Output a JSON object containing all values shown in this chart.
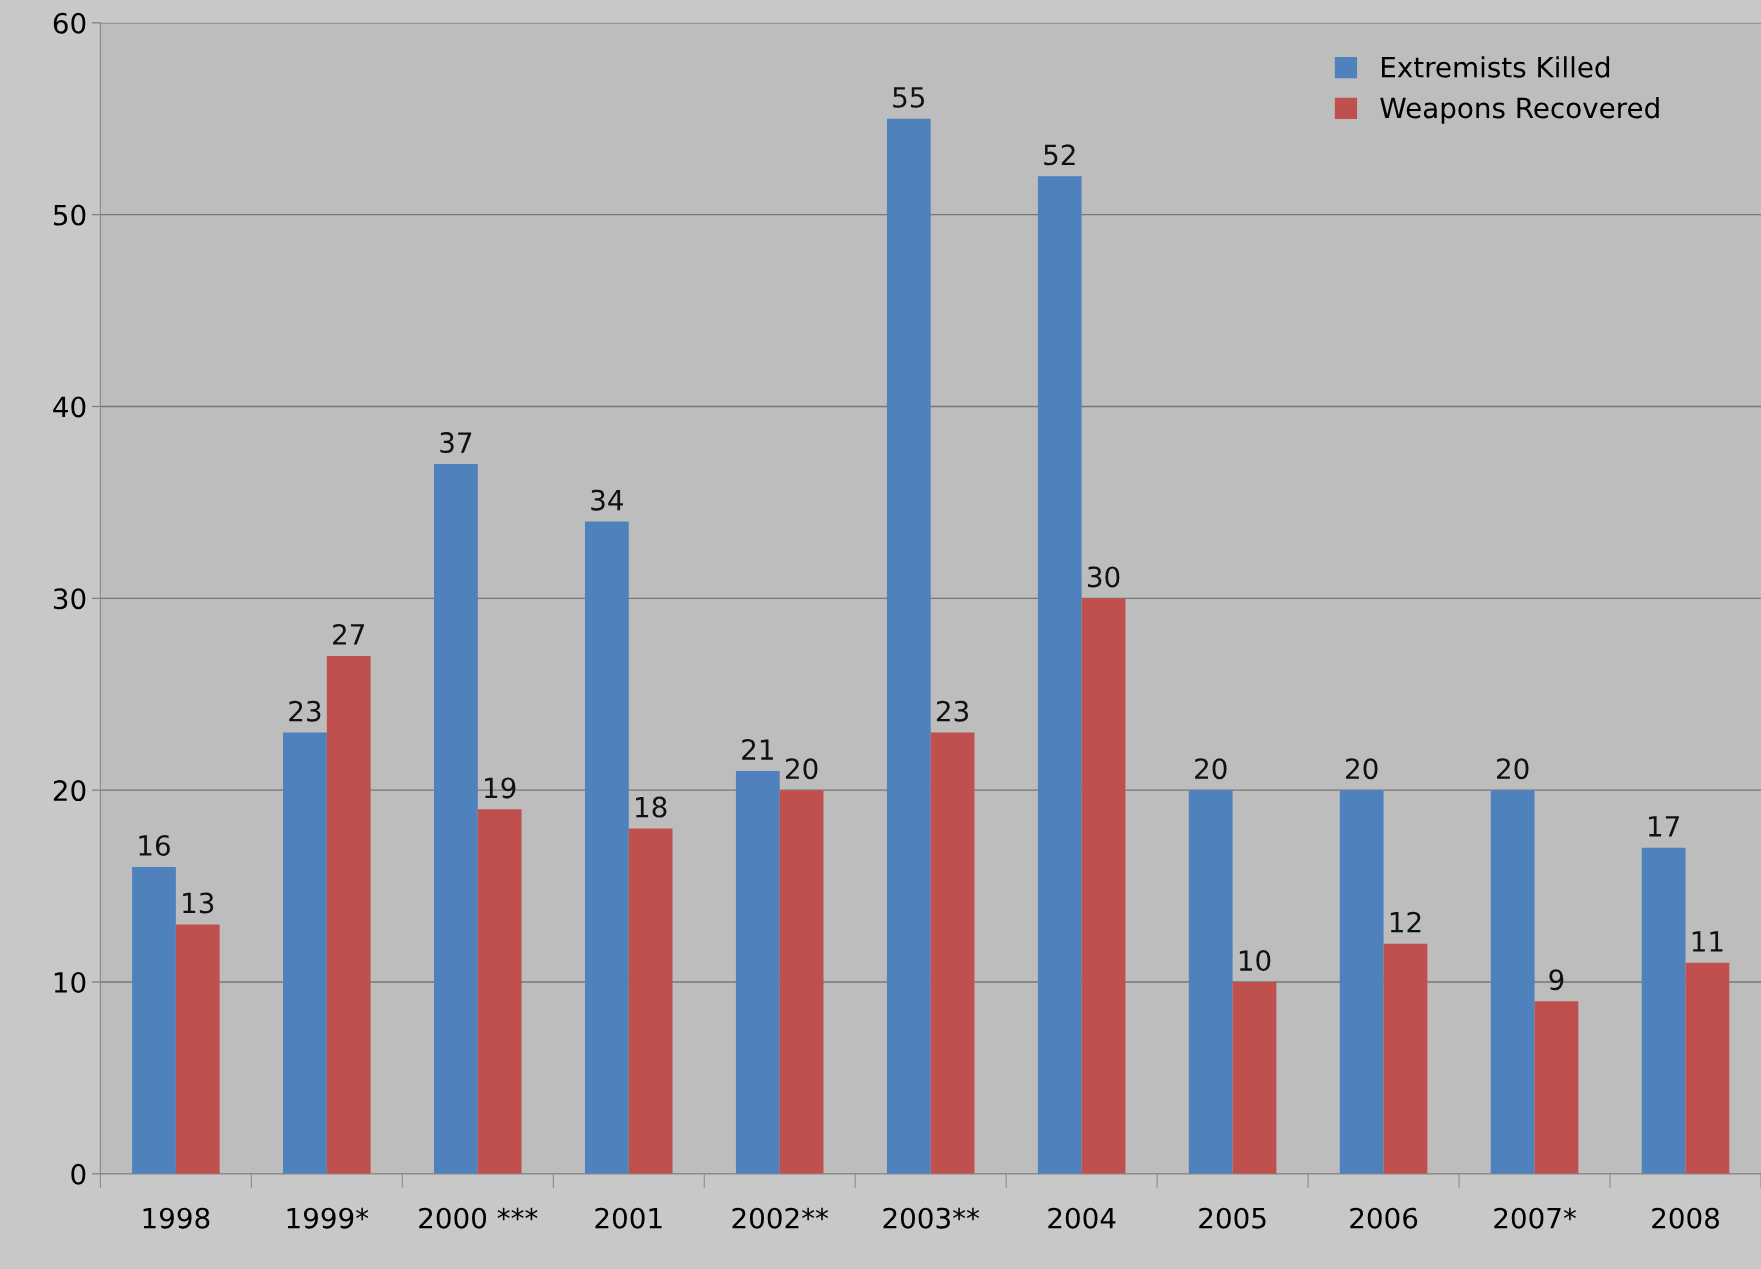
{
  "chart_data": {
    "type": "bar",
    "categories": [
      "1998",
      "1999*",
      "2000 ***",
      "2001",
      "2002**",
      "2003**",
      "2004",
      "2005",
      "2006",
      "2007*",
      "2008"
    ],
    "series": [
      {
        "name": "Extremists Killed",
        "color": "#4f81bd",
        "values": [
          16,
          23,
          37,
          34,
          21,
          55,
          52,
          20,
          20,
          20,
          17
        ]
      },
      {
        "name": "Weapons Recovered",
        "color": "#c0504d",
        "values": [
          13,
          27,
          19,
          18,
          20,
          23,
          30,
          10,
          12,
          9,
          11
        ]
      }
    ],
    "ylim": [
      0,
      60
    ],
    "yticks": [
      0,
      10,
      20,
      30,
      40,
      50,
      60
    ],
    "grid": "y",
    "legend": "top right",
    "data_labels": true
  }
}
